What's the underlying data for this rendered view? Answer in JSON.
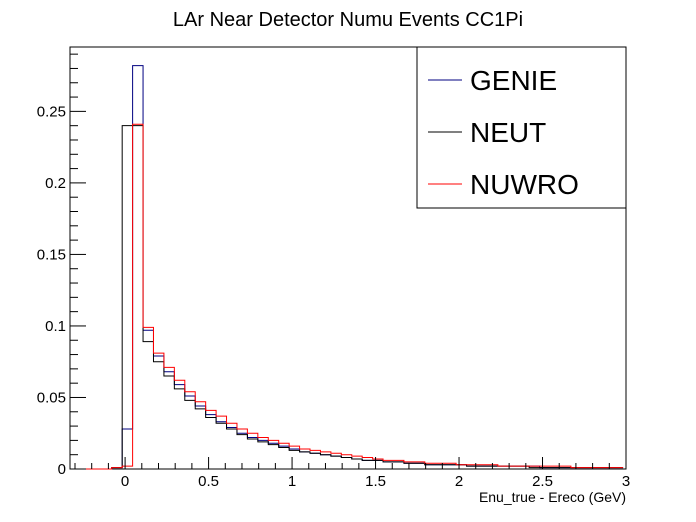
{
  "chart_data": {
    "type": "histogram-step",
    "title": "LAr Near Detector Numu Events CC1Pi",
    "xlabel": "Enu_true - Ereco (GeV)",
    "ylabel": "",
    "xlim": [
      -0.33,
      3.0
    ],
    "ylim": [
      0,
      0.295
    ],
    "bin_width": 0.0625,
    "bin_start": -0.33,
    "x_ticks": [
      0,
      0.5,
      1,
      1.5,
      2,
      2.5,
      3
    ],
    "x_tick_labels": [
      "0",
      "0.5",
      "1",
      "1.5",
      "2",
      "2.5",
      "3"
    ],
    "y_ticks": [
      0,
      0.05,
      0.1,
      0.15,
      0.2,
      0.25
    ],
    "y_tick_labels": [
      "0",
      "0.05",
      "0.1",
      "0.15",
      "0.2",
      "0.25"
    ],
    "legend": {
      "position": "top-right"
    },
    "series": [
      {
        "name": "GENIE",
        "color": "#000080",
        "values": [
          0,
          0,
          0,
          0,
          0.001,
          0.028,
          0.282,
          0.097,
          0.079,
          0.068,
          0.059,
          0.051,
          0.044,
          0.038,
          0.033,
          0.029,
          0.025,
          0.022,
          0.02,
          0.018,
          0.016,
          0.014,
          0.012,
          0.011,
          0.01,
          0.009,
          0.008,
          0.007,
          0.006,
          0.006,
          0.005,
          0.005,
          0.004,
          0.004,
          0.003,
          0.003,
          0.003,
          0.003,
          0.002,
          0.002,
          0.002,
          0.002,
          0.002,
          0.002,
          0.002,
          0.001,
          0.001,
          0.001,
          0.001,
          0.001,
          0.001,
          0.001,
          0.001
        ]
      },
      {
        "name": "NEUT",
        "color": "#000000",
        "values": [
          0,
          0,
          0,
          0,
          0.001,
          0.24,
          0.24,
          0.089,
          0.075,
          0.065,
          0.056,
          0.048,
          0.042,
          0.036,
          0.032,
          0.028,
          0.024,
          0.021,
          0.019,
          0.017,
          0.015,
          0.013,
          0.012,
          0.011,
          0.01,
          0.009,
          0.008,
          0.007,
          0.006,
          0.006,
          0.005,
          0.005,
          0.004,
          0.004,
          0.003,
          0.003,
          0.003,
          0.003,
          0.002,
          0.002,
          0.002,
          0.002,
          0.002,
          0.002,
          0.001,
          0.001,
          0.001,
          0.001,
          0.001,
          0.001,
          0.001,
          0.001,
          0.001
        ]
      },
      {
        "name": "NUWRO",
        "color": "#ff0000",
        "values": [
          0,
          0,
          0,
          0,
          0.001,
          0.002,
          0.241,
          0.099,
          0.081,
          0.071,
          0.062,
          0.054,
          0.047,
          0.041,
          0.037,
          0.032,
          0.028,
          0.025,
          0.022,
          0.02,
          0.018,
          0.016,
          0.014,
          0.013,
          0.012,
          0.011,
          0.01,
          0.009,
          0.008,
          0.007,
          0.006,
          0.006,
          0.005,
          0.005,
          0.004,
          0.004,
          0.004,
          0.003,
          0.003,
          0.003,
          0.003,
          0.002,
          0.002,
          0.002,
          0.002,
          0.002,
          0.002,
          0.002,
          0.001,
          0.001,
          0.001,
          0.001,
          0.001
        ]
      }
    ]
  }
}
